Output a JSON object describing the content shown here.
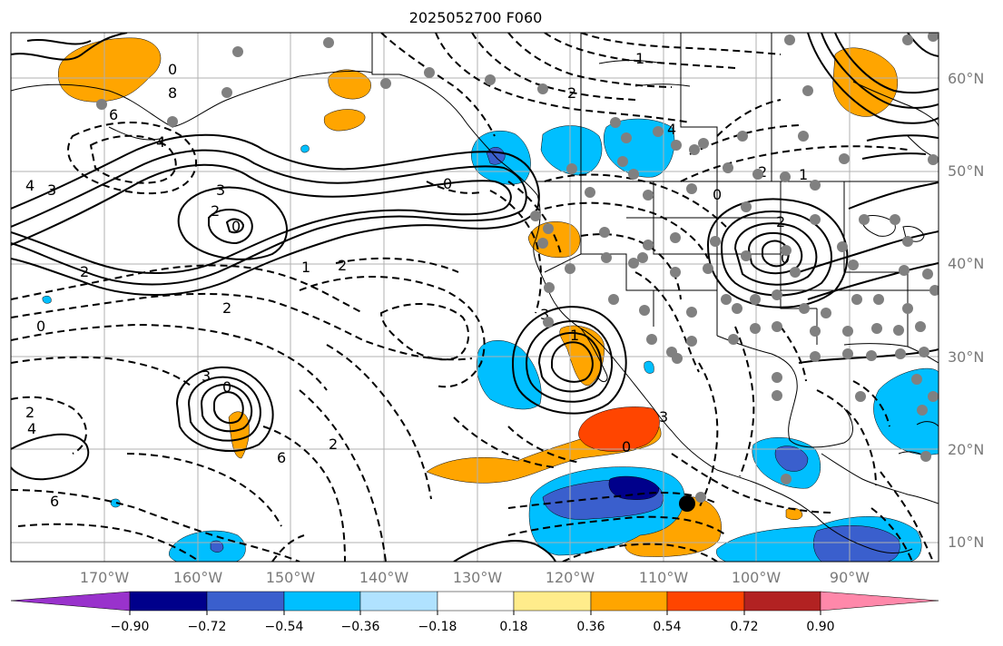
{
  "title": "2025052700 F060",
  "lat_labels": [
    "60°N",
    "50°N",
    "40°N",
    "30°N",
    "20°N",
    "10°N"
  ],
  "lon_labels": [
    "170°W",
    "160°W",
    "150°W",
    "140°W",
    "130°W",
    "120°W",
    "110°W",
    "100°W",
    "90°W"
  ],
  "colorbar": {
    "ticks": [
      "−0.90",
      "−0.72",
      "−0.54",
      "−0.36",
      "−0.18",
      "0.18",
      "0.36",
      "0.54",
      "0.72",
      "0.90"
    ],
    "colors": [
      "#9932cc",
      "#00008b",
      "#3a5fcd",
      "#00bfff",
      "#b0e2ff",
      "#ffffff",
      "#ffec8b",
      "#ffa500",
      "#ff4500",
      "#b22222",
      "#ff88aa"
    ]
  },
  "colors": {
    "land_outline": "#000000",
    "grid": "#b0b0b0",
    "station_dot": "#808080",
    "contour": "#000000"
  },
  "contour_labels": [
    "4",
    "3",
    "0",
    "8",
    "6",
    "4",
    "0",
    "2",
    "3",
    "0",
    "2",
    "0",
    "2",
    "1",
    "2",
    "3",
    "0",
    "2",
    "4",
    "6",
    "2",
    "6",
    "3",
    "1",
    "0",
    "3",
    "4",
    "2",
    "1",
    "0",
    "2",
    "0",
    "2",
    "1"
  ]
}
